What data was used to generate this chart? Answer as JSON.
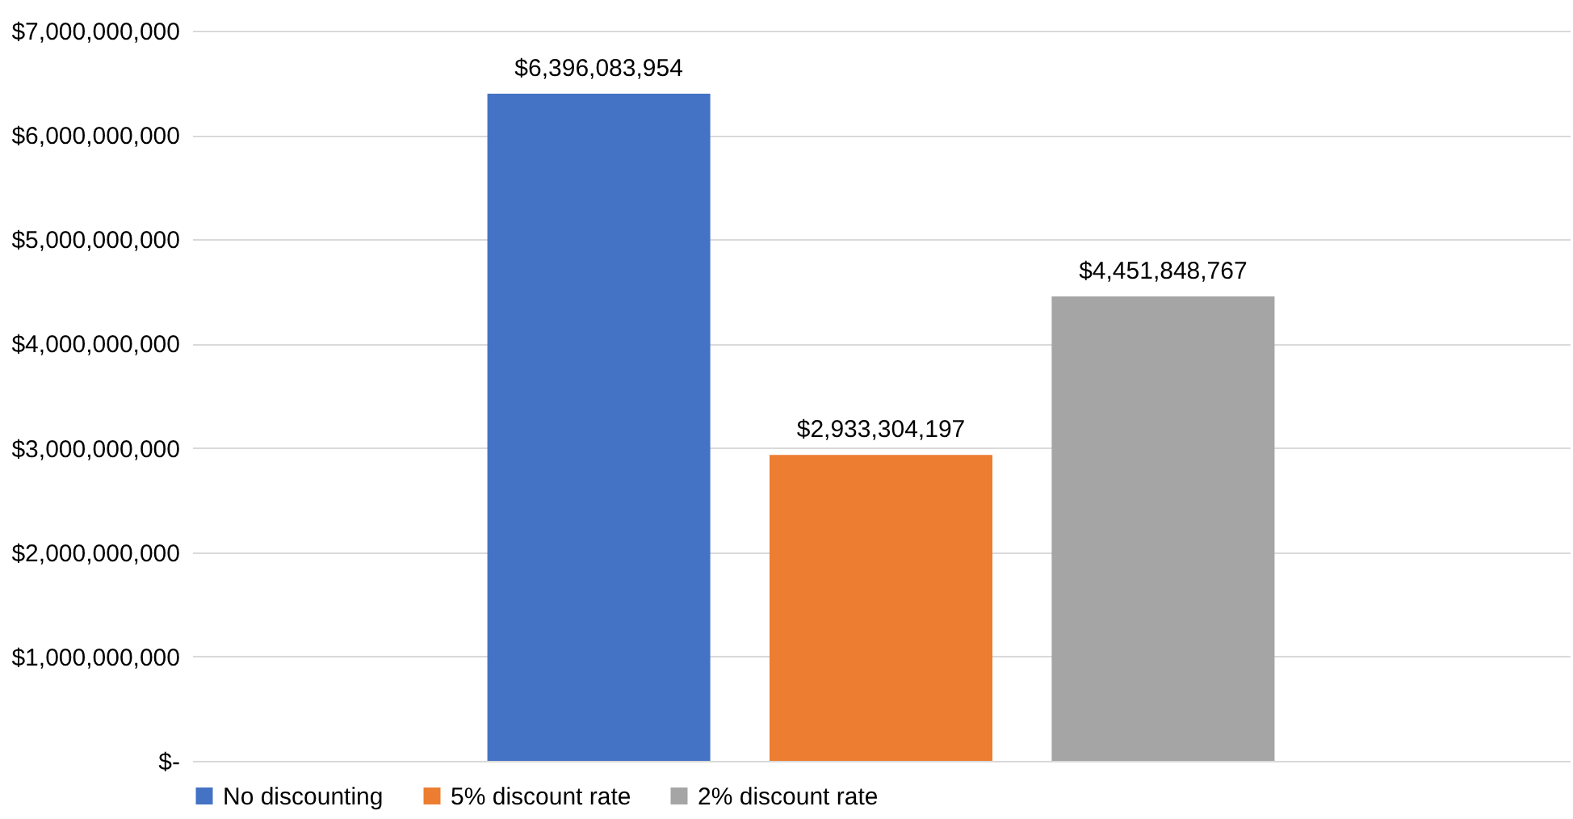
{
  "chart_data": {
    "type": "bar",
    "categories": [
      null
    ],
    "series": [
      {
        "name": "No discounting",
        "color": "#4472c4",
        "values": [
          6396083954
        ],
        "value_labels": [
          "$6,396,083,954"
        ]
      },
      {
        "name": "5% discount rate",
        "color": "#ed7d31",
        "values": [
          2933304197
        ],
        "value_labels": [
          "$2,933,304,197"
        ]
      },
      {
        "name": "2% discount rate",
        "color": "#a5a5a5",
        "values": [
          4451848767
        ],
        "value_labels": [
          "$4,451,848,767"
        ]
      }
    ],
    "ylim": [
      0,
      7000000000
    ],
    "yticks": [
      {
        "value": 0,
        "label": "$-"
      },
      {
        "value": 1000000000,
        "label": "$1,000,000,000"
      },
      {
        "value": 2000000000,
        "label": "$2,000,000,000"
      },
      {
        "value": 3000000000,
        "label": "$3,000,000,000"
      },
      {
        "value": 4000000000,
        "label": "$4,000,000,000"
      },
      {
        "value": 5000000000,
        "label": "$5,000,000,000"
      },
      {
        "value": 6000000000,
        "label": "$6,000,000,000"
      },
      {
        "value": 7000000000,
        "label": "$7,000,000,000"
      }
    ],
    "grid": "y",
    "legend": "bottom",
    "tick_labels": "y"
  }
}
